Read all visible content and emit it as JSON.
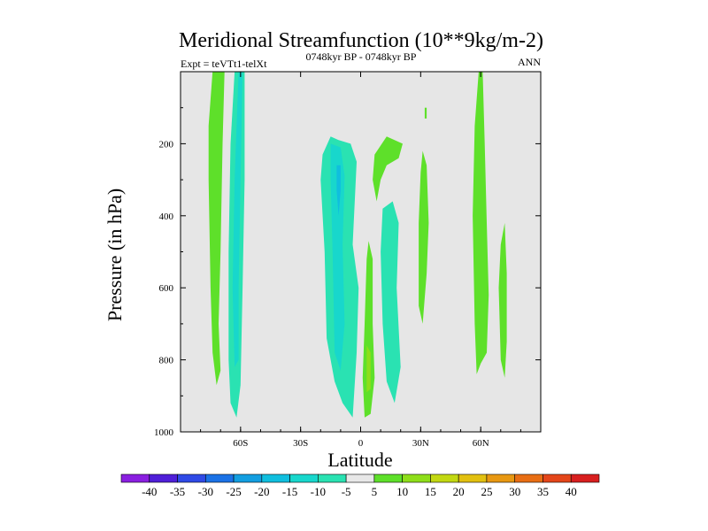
{
  "chart_data": {
    "type": "heatmap",
    "title": "Meridional Streamfunction (10**9kg/m-2)",
    "subtitle": "0748kyr BP - 0748kyr BP",
    "left_note": "Expt = teVTt1-telXt",
    "right_note": "ANN",
    "xlabel": "Latitude",
    "ylabel": "Pressure (in hPa)",
    "xlim": [
      -90,
      90
    ],
    "ylim": [
      1000,
      0
    ],
    "x_ticks": [
      {
        "value": -60,
        "label": "60S"
      },
      {
        "value": -30,
        "label": "30S"
      },
      {
        "value": 0,
        "label": "0"
      },
      {
        "value": 30,
        "label": "30N"
      },
      {
        "value": 60,
        "label": "60N"
      }
    ],
    "y_ticks": [
      {
        "value": 200,
        "label": "200"
      },
      {
        "value": 400,
        "label": "400"
      },
      {
        "value": 600,
        "label": "600"
      },
      {
        "value": 800,
        "label": "800"
      },
      {
        "value": 1000,
        "label": "1000"
      }
    ],
    "background_color": "#e6e6e6",
    "colorbar": {
      "labels": [
        "-40",
        "-35",
        "-30",
        "-25",
        "-20",
        "-15",
        "-10",
        "-5",
        "5",
        "10",
        "15",
        "20",
        "25",
        "30",
        "35",
        "40"
      ],
      "colors": [
        "#8a1fe0",
        "#4f1fd8",
        "#2f4ae6",
        "#1b72e6",
        "#139ee0",
        "#10bede",
        "#18d7cc",
        "#2ae2b2",
        "#e8e8e8",
        "#5ee02a",
        "#8ede1a",
        "#c2d812",
        "#e2c010",
        "#e89812",
        "#e86e14",
        "#e4461a",
        "#d81f1f"
      ]
    },
    "contours": [
      {
        "name": "band-65s-positive",
        "color": "#5ee02a",
        "points": [
          [
            -74,
            0
          ],
          [
            -68,
            0
          ],
          [
            -69,
            200
          ],
          [
            -70,
            500
          ],
          [
            -71,
            700
          ],
          [
            -70,
            830
          ],
          [
            -72,
            870
          ],
          [
            -74,
            780
          ],
          [
            -75,
            600
          ],
          [
            -76,
            300
          ],
          [
            -76,
            150
          ]
        ]
      },
      {
        "name": "band-65s-negative",
        "color": "#2ae2b2",
        "points": [
          [
            -62,
            0
          ],
          [
            -58,
            0
          ],
          [
            -58,
            300
          ],
          [
            -59,
            600
          ],
          [
            -60,
            870
          ],
          [
            -62,
            960
          ],
          [
            -65,
            920
          ],
          [
            -66,
            800
          ],
          [
            -66,
            500
          ],
          [
            -65,
            200
          ],
          [
            -63,
            0
          ]
        ]
      },
      {
        "name": "band-65s-negative-core",
        "color": "#18d7cc",
        "points": [
          [
            -61,
            0
          ],
          [
            -59,
            0
          ],
          [
            -60,
            300
          ],
          [
            -61,
            600
          ],
          [
            -61,
            800
          ],
          [
            -63,
            820
          ],
          [
            -64,
            600
          ],
          [
            -63,
            300
          ]
        ]
      },
      {
        "name": "band-equator-negative",
        "color": "#2ae2b2",
        "points": [
          [
            -19,
            230
          ],
          [
            -15,
            180
          ],
          [
            -11,
            190
          ],
          [
            -5,
            200
          ],
          [
            -2,
            250
          ],
          [
            -4,
            480
          ],
          [
            -1,
            600
          ],
          [
            -2,
            780
          ],
          [
            -4,
            960
          ],
          [
            -9,
            920
          ],
          [
            -13,
            860
          ],
          [
            -17,
            740
          ],
          [
            -18,
            500
          ],
          [
            -20,
            300
          ]
        ]
      },
      {
        "name": "band-equator-negative-core",
        "color": "#18d7cc",
        "points": [
          [
            -15,
            200
          ],
          [
            -10,
            210
          ],
          [
            -8,
            290
          ],
          [
            -9,
            480
          ],
          [
            -8,
            700
          ],
          [
            -10,
            830
          ],
          [
            -13,
            780
          ],
          [
            -14,
            500
          ],
          [
            -15,
            300
          ]
        ]
      },
      {
        "name": "band-equator-negative-inner",
        "color": "#10bede",
        "points": [
          [
            -12,
            260
          ],
          [
            -10,
            260
          ],
          [
            -10,
            330
          ],
          [
            -11,
            400
          ],
          [
            -12,
            330
          ]
        ]
      },
      {
        "name": "band-5n-positive-lower",
        "color": "#5ee02a",
        "points": [
          [
            4,
            470
          ],
          [
            6,
            520
          ],
          [
            6,
            700
          ],
          [
            7,
            850
          ],
          [
            5,
            950
          ],
          [
            2,
            960
          ],
          [
            1,
            850
          ],
          [
            2,
            700
          ],
          [
            3,
            520
          ]
        ]
      },
      {
        "name": "band-5n-positive-core",
        "color": "#8ede1a",
        "points": [
          [
            3,
            760
          ],
          [
            5,
            780
          ],
          [
            5,
            880
          ],
          [
            3,
            890
          ]
        ]
      },
      {
        "name": "band-8n-positive-upper",
        "color": "#5ee02a",
        "points": [
          [
            7,
            230
          ],
          [
            13,
            180
          ],
          [
            21,
            200
          ],
          [
            19,
            240
          ],
          [
            13,
            260
          ],
          [
            10,
            300
          ],
          [
            8,
            360
          ],
          [
            6,
            300
          ]
        ]
      },
      {
        "name": "band-15n-negative",
        "color": "#2ae2b2",
        "points": [
          [
            11,
            380
          ],
          [
            16,
            360
          ],
          [
            19,
            420
          ],
          [
            18,
            600
          ],
          [
            20,
            820
          ],
          [
            17,
            920
          ],
          [
            13,
            860
          ],
          [
            11,
            700
          ],
          [
            10,
            500
          ]
        ]
      },
      {
        "name": "band-32n-positive",
        "color": "#5ee02a",
        "points": [
          [
            31,
            220
          ],
          [
            33,
            260
          ],
          [
            34,
            420
          ],
          [
            33,
            560
          ],
          [
            31,
            700
          ],
          [
            29,
            650
          ],
          [
            29,
            420
          ],
          [
            30,
            280
          ]
        ]
      },
      {
        "name": "band-32n-positive-tip",
        "color": "#5ee02a",
        "points": [
          [
            32,
            100
          ],
          [
            33,
            100
          ],
          [
            33,
            130
          ],
          [
            32,
            130
          ]
        ]
      },
      {
        "name": "band-60n-positive",
        "color": "#5ee02a",
        "points": [
          [
            59,
            0
          ],
          [
            61,
            0
          ],
          [
            62,
            200
          ],
          [
            63,
            420
          ],
          [
            64,
            620
          ],
          [
            63,
            780
          ],
          [
            60,
            810
          ],
          [
            58,
            840
          ],
          [
            57,
            700
          ],
          [
            56,
            400
          ],
          [
            57,
            150
          ]
        ]
      },
      {
        "name": "band-72n-positive",
        "color": "#5ee02a",
        "points": [
          [
            72,
            420
          ],
          [
            73,
            560
          ],
          [
            73,
            750
          ],
          [
            72,
            850
          ],
          [
            70,
            800
          ],
          [
            69,
            600
          ],
          [
            70,
            480
          ]
        ]
      }
    ]
  }
}
